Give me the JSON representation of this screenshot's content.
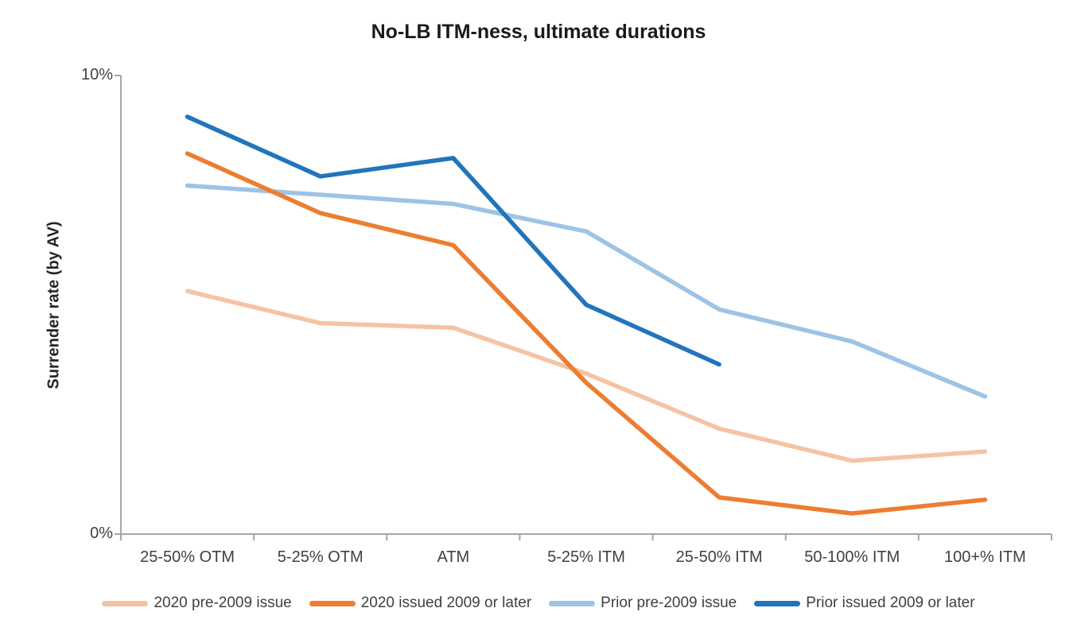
{
  "chart_data": {
    "type": "line",
    "title": "No-LB ITM-ness, ultimate durations",
    "xlabel": "",
    "ylabel": "Surrender rate (by AV)",
    "ylim": [
      0,
      10
    ],
    "y_tick_labels": [
      "0%",
      "10%"
    ],
    "grid": false,
    "legend_position": "bottom",
    "categories": [
      "25-50% OTM",
      "5-25% OTM",
      "ATM",
      "5-25% ITM",
      "25-50% ITM",
      "50-100% ITM",
      "100+% ITM"
    ],
    "series": [
      {
        "name": "2020 pre-2009 issue",
        "color": "#F5C3A4",
        "values": [
          5.3,
          4.6,
          4.5,
          3.5,
          2.3,
          1.6,
          1.8
        ]
      },
      {
        "name": "2020 issued 2009 or later",
        "color": "#ED7D31",
        "values": [
          8.3,
          7.0,
          6.3,
          3.3,
          0.8,
          0.45,
          0.75
        ]
      },
      {
        "name": "Prior pre-2009 issue",
        "color": "#9DC3E6",
        "values": [
          7.6,
          7.4,
          7.2,
          6.6,
          4.9,
          4.2,
          3.0
        ]
      },
      {
        "name": "Prior issued 2009 or later",
        "color": "#2274BC",
        "values": [
          9.1,
          7.8,
          8.2,
          5.0,
          3.7,
          null,
          null
        ]
      }
    ],
    "draw_order": [
      0,
      2,
      1,
      3
    ],
    "axis_color": "#A6A6A6",
    "tick_text_color": "#404040"
  }
}
